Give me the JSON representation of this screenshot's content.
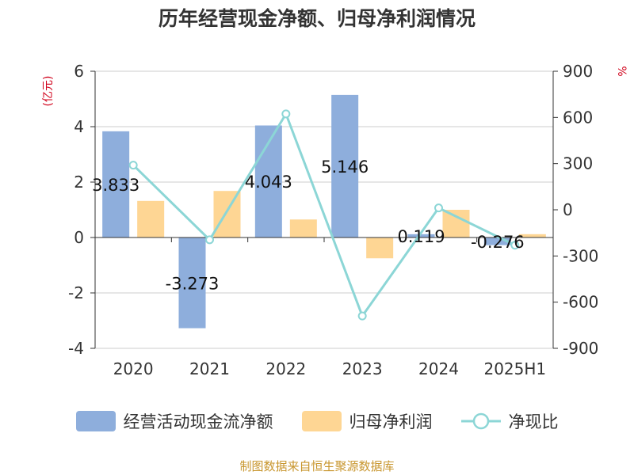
{
  "chart_data": {
    "type": "bar",
    "title": "历年经营现金净额、归母净利润情况",
    "categories": [
      "2020",
      "2021",
      "2022",
      "2023",
      "2024",
      "2025H1"
    ],
    "left_axis": {
      "unit": "(亿元)",
      "ylim": [
        -4,
        6
      ],
      "ticks": [
        -4,
        -2,
        0,
        2,
        4,
        6
      ]
    },
    "right_axis": {
      "unit": "%",
      "ylim": [
        -900,
        900
      ],
      "ticks": [
        -900,
        -600,
        -300,
        0,
        300,
        600,
        900
      ]
    },
    "grid": true,
    "legend_position": "bottom",
    "series": [
      {
        "name": "经营活动现金流净额",
        "type": "bar",
        "axis": "left",
        "color": "#8eaedc",
        "values": [
          3.833,
          -3.273,
          4.043,
          5.146,
          0.119,
          -0.276
        ],
        "labels": [
          "3.833",
          "-3.273",
          "4.043",
          "5.146",
          "0.119",
          "-0.276"
        ]
      },
      {
        "name": "归母净利润",
        "type": "bar",
        "axis": "left",
        "color": "#fed694",
        "values": [
          1.32,
          1.68,
          0.65,
          -0.75,
          1.0,
          0.12
        ]
      },
      {
        "name": "净现比",
        "type": "line",
        "axis": "right",
        "color": "#8cd6d6",
        "values": [
          290,
          -195,
          623,
          -690,
          12,
          -230
        ]
      }
    ]
  },
  "legend": {
    "items": [
      "经营活动现金流净额",
      "归母净利润",
      "净现比"
    ]
  },
  "source": "制图数据来自恒生聚源数据库"
}
